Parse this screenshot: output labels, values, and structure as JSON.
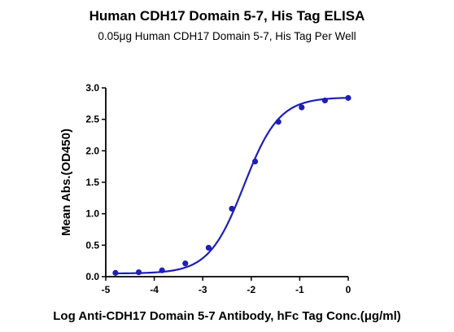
{
  "chart_data": {
    "type": "line",
    "title": "Human CDH17 Domain 5-7, His Tag ELISA",
    "subtitle": "0.05μg Human CDH17 Domain 5-7, His Tag Per Well",
    "xlabel": "Log Anti-CDH17 Domain 5-7 Antibody, hFc Tag Conc.(μg/ml)",
    "ylabel": "Mean Abs.(OD450)",
    "xlim": [
      -5,
      0
    ],
    "ylim": [
      0,
      3.0
    ],
    "x_ticks": [
      "-5",
      "-4",
      "-3",
      "-2",
      "-1",
      "0"
    ],
    "y_ticks": [
      "0.0",
      "0.5",
      "1.0",
      "1.5",
      "2.0",
      "2.5",
      "3.0"
    ],
    "grid": false,
    "legend": "none",
    "series": [
      {
        "color": "#1f1fb4",
        "points": [
          {
            "x": -4.8,
            "y": 0.06
          },
          {
            "x": -4.32,
            "y": 0.07
          },
          {
            "x": -3.84,
            "y": 0.1
          },
          {
            "x": -3.36,
            "y": 0.21
          },
          {
            "x": -2.88,
            "y": 0.46
          },
          {
            "x": -2.4,
            "y": 1.08
          },
          {
            "x": -1.92,
            "y": 1.83
          },
          {
            "x": -1.44,
            "y": 2.46
          },
          {
            "x": -0.96,
            "y": 2.69
          },
          {
            "x": -0.48,
            "y": 2.8
          },
          {
            "x": 0.0,
            "y": 2.84
          }
        ],
        "fit": {
          "bottom": 0.05,
          "top": 2.85,
          "logEC50": -2.15,
          "hill": 1.2
        }
      }
    ]
  }
}
